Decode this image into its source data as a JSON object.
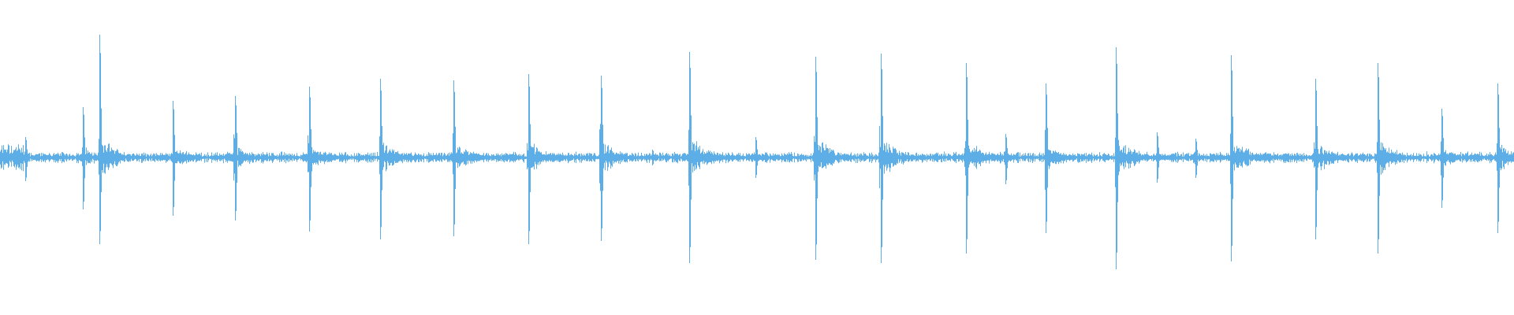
{
  "chart_data": {
    "type": "waveform",
    "color": "#5dade6",
    "background": "#ffffff",
    "axes_visible": false,
    "grid": false,
    "ylim": [
      -1,
      1
    ],
    "xlim_pct": [
      0,
      100
    ],
    "noise_floor_amplitude": 0.03,
    "transients": [
      {
        "time_pct": 1.66,
        "pos": 0.13,
        "neg": -0.15
      },
      {
        "time_pct": 5.48,
        "pos": 0.32,
        "neg": -0.33
      },
      {
        "time_pct": 6.57,
        "pos": 0.78,
        "neg": -0.55
      },
      {
        "time_pct": 11.42,
        "pos": 0.36,
        "neg": -0.37
      },
      {
        "time_pct": 15.5,
        "pos": 0.39,
        "neg": -0.4
      },
      {
        "time_pct": 20.41,
        "pos": 0.45,
        "neg": -0.47
      },
      {
        "time_pct": 25.13,
        "pos": 0.5,
        "neg": -0.52
      },
      {
        "time_pct": 29.97,
        "pos": 0.49,
        "neg": -0.5
      },
      {
        "time_pct": 34.89,
        "pos": 0.53,
        "neg": -0.55
      },
      {
        "time_pct": 39.67,
        "pos": 0.52,
        "neg": -0.53
      },
      {
        "time_pct": 43.05,
        "pos": 0.05,
        "neg": -0.05
      },
      {
        "time_pct": 45.54,
        "pos": 0.67,
        "neg": -0.67
      },
      {
        "time_pct": 49.87,
        "pos": 0.13,
        "neg": -0.13
      },
      {
        "time_pct": 53.83,
        "pos": 0.64,
        "neg": -0.65
      },
      {
        "time_pct": 58.16,
        "pos": 0.66,
        "neg": -0.67
      },
      {
        "time_pct": 63.78,
        "pos": 0.6,
        "neg": -0.61
      },
      {
        "time_pct": 66.39,
        "pos": 0.15,
        "neg": -0.17
      },
      {
        "time_pct": 69.07,
        "pos": 0.47,
        "neg": -0.48
      },
      {
        "time_pct": 73.72,
        "pos": 0.7,
        "neg": -0.71
      },
      {
        "time_pct": 76.4,
        "pos": 0.16,
        "neg": -0.16
      },
      {
        "time_pct": 78.95,
        "pos": 0.12,
        "neg": -0.13
      },
      {
        "time_pct": 81.31,
        "pos": 0.65,
        "neg": -0.66
      },
      {
        "time_pct": 86.86,
        "pos": 0.5,
        "neg": -0.52
      },
      {
        "time_pct": 91.01,
        "pos": 0.6,
        "neg": -0.61
      },
      {
        "time_pct": 95.22,
        "pos": 0.31,
        "neg": -0.32
      },
      {
        "time_pct": 98.92,
        "pos": 0.47,
        "neg": -0.48
      }
    ]
  }
}
